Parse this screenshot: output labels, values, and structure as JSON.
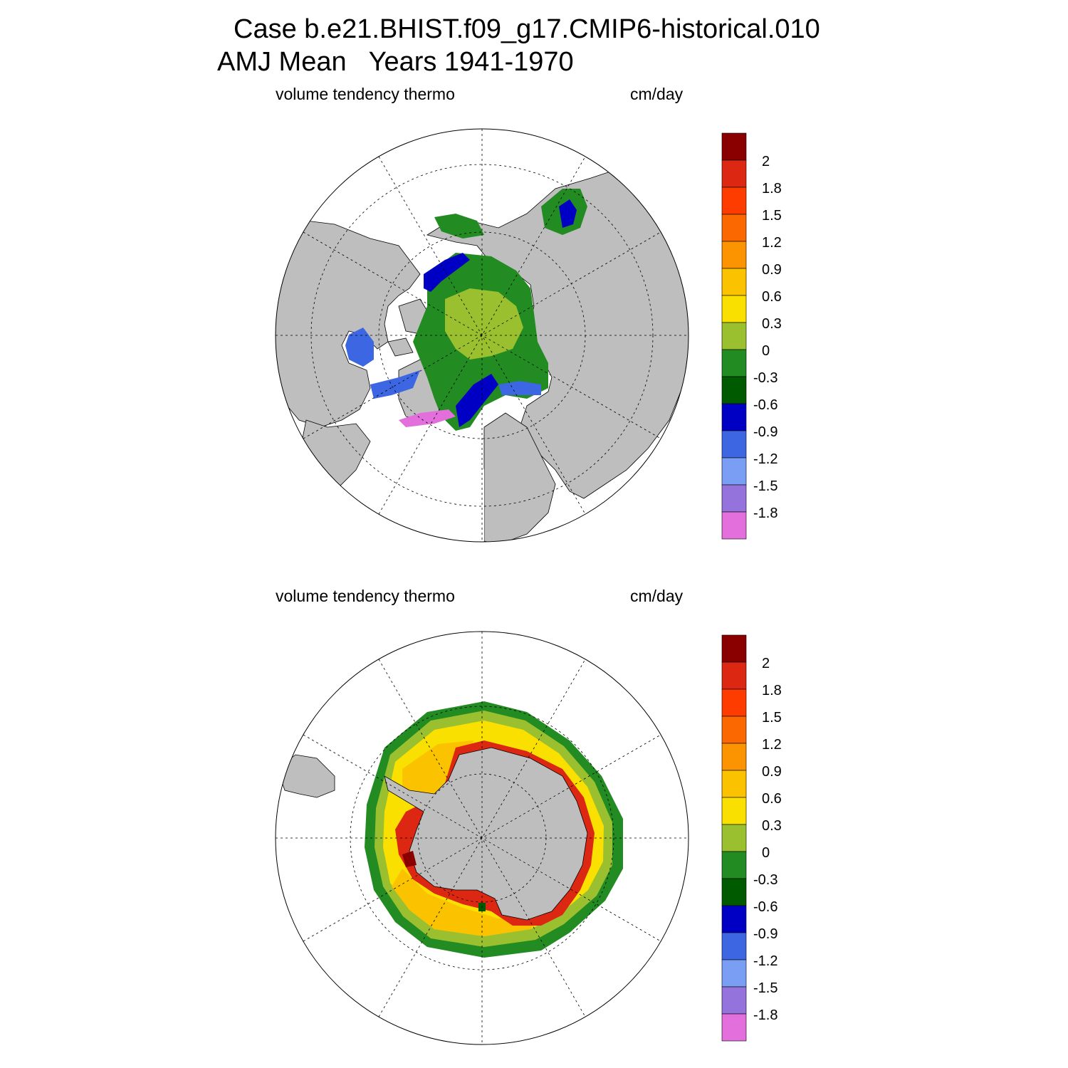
{
  "title": {
    "line1": "Case b.e21.BHIST.f09_g17.CMIP6-historical.010",
    "line2": "AMJ Mean   Years 1941-1970"
  },
  "colors": {
    "land": "#bebebe",
    "no_ice": "#ffffff",
    "scale": [
      "#e26fdc",
      "#9473dd",
      "#7a9ef3",
      "#3d66e3",
      "#0000c4",
      "#005a00",
      "#228b22",
      "#9ac030",
      "#fae000",
      "#fbc200",
      "#fc9300",
      "#fb6700",
      "#fe3c00",
      "#dc2812",
      "#8a0000"
    ]
  },
  "panels": [
    {
      "name": "Northern Hemisphere",
      "variable_label": "volume tendency thermo",
      "units_label": "cm/day",
      "colorbar": {
        "labels": [
          "2",
          "1.8",
          "1.5",
          "1.2",
          "0.9",
          "0.6",
          "0.3",
          "0",
          "-0.3",
          "-0.6",
          "-0.9",
          "-1.2",
          "-1.5",
          "-1.8"
        ]
      }
    },
    {
      "name": "Southern Hemisphere",
      "variable_label": "volume tendency thermo",
      "units_label": "cm/day",
      "colorbar": {
        "labels": [
          "2",
          "1.8",
          "1.5",
          "1.2",
          "0.9",
          "0.6",
          "0.3",
          "0",
          "-0.3",
          "-0.6",
          "-0.9",
          "-1.2",
          "-1.5",
          "-1.8"
        ]
      }
    }
  ]
}
